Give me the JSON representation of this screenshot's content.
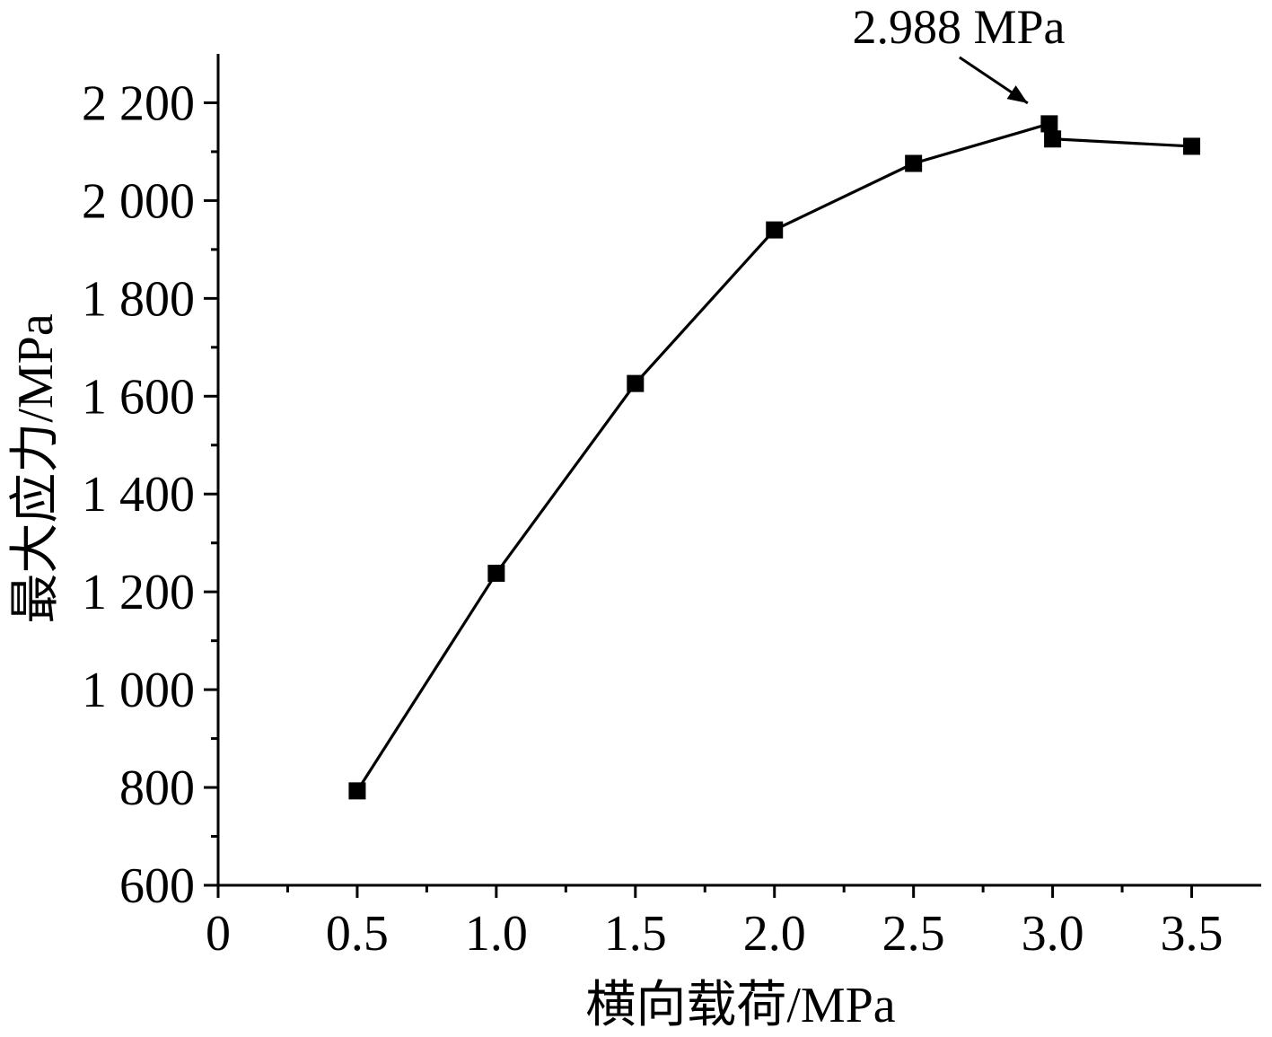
{
  "chart_data": {
    "type": "line",
    "x": [
      0.5,
      1.0,
      1.5,
      2.0,
      2.5,
      2.988,
      3.0,
      3.5
    ],
    "series": [
      {
        "values": [
          793,
          1238,
          1626,
          1940,
          2076,
          2157,
          2126,
          2111
        ],
        "marker": "square",
        "color": "#000000"
      }
    ],
    "xlabel": "横向载荷/MPa",
    "ylabel": "最大应力/MPa",
    "xlim": [
      0,
      3.75
    ],
    "ylim": [
      600,
      2300
    ],
    "xticks": [
      0,
      0.5,
      1.0,
      1.5,
      2.0,
      2.5,
      3.0,
      3.5
    ],
    "xtick_labels": [
      "0",
      "0.5",
      "1.0",
      "1.5",
      "2.0",
      "2.5",
      "3.0",
      "3.5"
    ],
    "yticks": [
      600,
      800,
      1000,
      1200,
      1400,
      1600,
      1800,
      2000,
      2200
    ],
    "ytick_labels": [
      "600",
      "800",
      "1 000",
      "1 200",
      "1 400",
      "1 600",
      "1 800",
      "2 000",
      "2 200"
    ],
    "annotation": {
      "text": "2.988 MPa",
      "target_x": 2.988,
      "target_y": 2157
    },
    "grid": false
  }
}
